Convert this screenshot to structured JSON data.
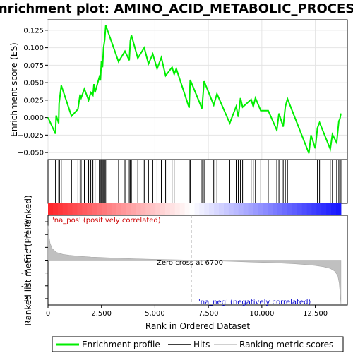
{
  "title": "Enrichment plot: AMINO_ACID_METABOLIC_PROCESS",
  "chart_data": {
    "type": "line",
    "title": "Enrichment plot: AMINO_ACID_METABOLIC_PROCESS",
    "top_panel": {
      "ylabel": "Enrichment score (ES)",
      "ylim": [
        -0.06,
        0.14
      ],
      "yticks": [
        -0.05,
        -0.025,
        0.0,
        0.025,
        0.05,
        0.075,
        0.1,
        0.125
      ],
      "ytick_labels": [
        "−0.050",
        "−0.025",
        "0.000",
        "0.025",
        "0.050",
        "0.075",
        "0.100",
        "0.125"
      ],
      "series": [
        {
          "name": "Enrichment profile",
          "color": "#00ee00",
          "x": [
            0,
            350,
            380,
            500,
            520,
            620,
            1100,
            1400,
            1500,
            1550,
            1700,
            1900,
            2000,
            2100,
            2150,
            2200,
            2400,
            2450,
            2500,
            2550,
            2600,
            2650,
            2700,
            3300,
            3600,
            3800,
            3850,
            3900,
            4200,
            4500,
            4700,
            4900,
            5100,
            5300,
            5500,
            5800,
            5900,
            6000,
            6600,
            6650,
            7200,
            7300,
            7750,
            7900,
            8500,
            8800,
            8900,
            9000,
            9100,
            9500,
            9600,
            9700,
            9950,
            10300,
            10700,
            10800,
            11000,
            11100,
            11200,
            12200,
            12300,
            12500,
            12600,
            12700,
            13200,
            13300,
            13500,
            13600,
            13650,
            13700
          ],
          "y": [
            0.0,
            -0.023,
            0.003,
            -0.008,
            0.02,
            0.046,
            0.002,
            0.012,
            0.033,
            0.028,
            0.041,
            0.025,
            0.036,
            0.032,
            0.048,
            0.036,
            0.058,
            0.053,
            0.081,
            0.072,
            0.1,
            0.111,
            0.132,
            0.08,
            0.095,
            0.082,
            0.11,
            0.118,
            0.085,
            0.1,
            0.077,
            0.091,
            0.07,
            0.086,
            0.06,
            0.072,
            0.062,
            0.07,
            0.014,
            0.054,
            0.013,
            0.052,
            0.018,
            0.034,
            -0.008,
            0.016,
            0.001,
            0.028,
            0.015,
            0.026,
            0.016,
            0.028,
            0.01,
            0.01,
            -0.018,
            0.006,
            -0.013,
            0.016,
            0.027,
            -0.051,
            -0.025,
            -0.044,
            -0.015,
            -0.007,
            -0.045,
            -0.024,
            -0.036,
            -0.005,
            -0.002,
            0.006
          ]
        }
      ]
    },
    "hits_panel": {
      "name": "Hits",
      "color": "#000000",
      "positions": [
        350,
        380,
        500,
        520,
        540,
        620,
        1100,
        1400,
        1500,
        1550,
        1700,
        1900,
        2000,
        2100,
        2200,
        2400,
        2450,
        2500,
        2550,
        2600,
        2620,
        2650,
        2700,
        3300,
        3600,
        3800,
        3850,
        3900,
        4200,
        4500,
        4700,
        4900,
        5100,
        5300,
        5500,
        5800,
        5900,
        6600,
        6650,
        7200,
        7300,
        7750,
        7900,
        8500,
        8800,
        8900,
        9000,
        9100,
        9500,
        9600,
        9700,
        9950,
        10300,
        10700,
        10800,
        11000,
        11100,
        11200,
        12200,
        12300,
        12600,
        12700,
        13200,
        13300,
        13500,
        13600,
        13650,
        13700
      ]
    },
    "bottom_panel": {
      "name": "Ranking metric scores",
      "color": "#c0c0c0",
      "xlabel": "Rank in Ordered Dataset",
      "ylabel": "Ranked list metric (PreRanked)",
      "ylim": [
        -3.5,
        3.5
      ],
      "yticks": [
        -3,
        -2,
        -1,
        0,
        1,
        2,
        3
      ],
      "x": [
        0,
        50,
        100,
        200,
        400,
        700,
        1000,
        1500,
        2000,
        3000,
        4000,
        5000,
        6000,
        6700,
        7500,
        8500,
        9500,
        10500,
        11500,
        12000,
        12500,
        12900,
        13200,
        13400,
        13550,
        13620,
        13660,
        13700
      ],
      "values": [
        2.7,
        1.8,
        1.3,
        0.9,
        0.6,
        0.45,
        0.38,
        0.3,
        0.24,
        0.17,
        0.11,
        0.06,
        0.02,
        0.0,
        -0.04,
        -0.09,
        -0.15,
        -0.2,
        -0.28,
        -0.34,
        -0.42,
        -0.52,
        -0.65,
        -0.85,
        -1.2,
        -1.8,
        -2.6,
        -3.4
      ]
    },
    "xlim": [
      0,
      14000
    ],
    "xticks": [
      0,
      2500,
      5000,
      7500,
      10000,
      12500
    ],
    "xtick_labels": [
      "0",
      "2,500",
      "5,000",
      "7,500",
      "10,000",
      "12,500"
    ],
    "annotations": {
      "pos_label": "'na_pos' (positively correlated)",
      "neg_label": "'na_neg' (negatively correlated)",
      "zero_cross": "Zero cross at 6700",
      "zero_cross_x": 6700
    }
  },
  "legend": {
    "items": [
      {
        "label": "Enrichment profile",
        "color": "#00ee00"
      },
      {
        "label": "Hits",
        "color": "#000000"
      },
      {
        "label": "Ranking metric scores",
        "color": "#c0c0c0"
      }
    ]
  }
}
